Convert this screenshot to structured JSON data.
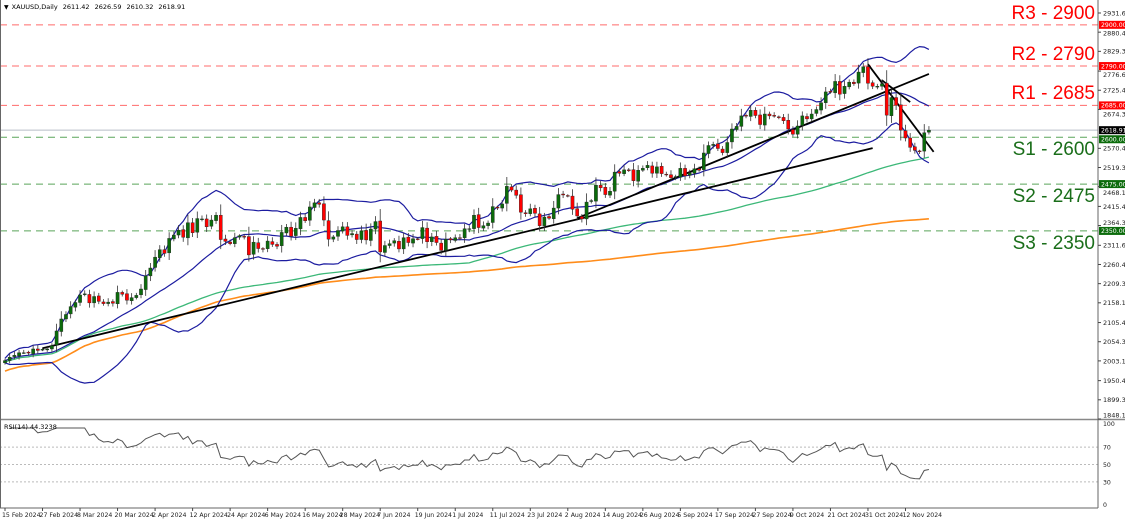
{
  "header": {
    "symbol": "XAUUSD,Daily",
    "open": "2611.42",
    "high": "2626.59",
    "low": "2610.32",
    "close": "2618.91"
  },
  "rsi_label": "RSI(14) 44.3238",
  "levels": [
    {
      "name": "R3",
      "label": "R3 - 2900",
      "value": 2900,
      "tag": "2900.00",
      "color": "#ff0000",
      "line_color": "#ff6b6b"
    },
    {
      "name": "R2",
      "label": "R2 - 2790",
      "value": 2790,
      "tag": "2790.00",
      "color": "#ff0000",
      "line_color": "#ff6b6b"
    },
    {
      "name": "R1",
      "label": "R1 - 2685",
      "value": 2685,
      "tag": "2685.00",
      "color": "#ff0000",
      "line_color": "#ff6b6b"
    },
    {
      "name": "S1",
      "label": "S1 - 2600",
      "value": 2600,
      "tag": "2600.00",
      "color": "#1a6e1a",
      "line_color": "#5aa55a"
    },
    {
      "name": "S2",
      "label": "S2 - 2475",
      "value": 2475,
      "tag": "2475.00",
      "color": "#1a6e1a",
      "line_color": "#5aa55a"
    },
    {
      "name": "S3",
      "label": "S3 - 2350",
      "value": 2350,
      "tag": "2350.00",
      "color": "#1a6e1a",
      "line_color": "#5aa55a"
    }
  ],
  "current_price": {
    "value": 2618.91,
    "tag": "2618.91"
  },
  "chart_data": {
    "type": "candlestick",
    "title": "XAUUSD,Daily",
    "start_date": "2024-02-15",
    "excluded_dates": [
      "2024-03-29"
    ],
    "closes": [
      2004,
      2013,
      2018,
      2025,
      2025,
      2024,
      2035,
      2031,
      2034,
      2035,
      2044,
      2083,
      2115,
      2127,
      2148,
      2159,
      2179,
      2182,
      2158,
      2175,
      2162,
      2156,
      2160,
      2157,
      2186,
      2181,
      2165,
      2172,
      2178,
      2195,
      2230,
      2251,
      2280,
      2300,
      2290,
      2330,
      2339,
      2352,
      2333,
      2372,
      2345,
      2383,
      2382,
      2361,
      2379,
      2392,
      2327,
      2322,
      2316,
      2332,
      2337,
      2335,
      2286,
      2320,
      2303,
      2301,
      2323,
      2314,
      2309,
      2346,
      2360,
      2336,
      2357,
      2386,
      2377,
      2414,
      2425,
      2421,
      2379,
      2328,
      2334,
      2351,
      2361,
      2338,
      2343,
      2327,
      2350,
      2326,
      2355,
      2375,
      2294,
      2311,
      2316,
      2324,
      2302,
      2332,
      2319,
      2329,
      2328,
      2359,
      2321,
      2334,
      2319,
      2298,
      2328,
      2326,
      2332,
      2330,
      2356,
      2356,
      2392,
      2359,
      2364,
      2371,
      2415,
      2411,
      2422,
      2469,
      2459,
      2445,
      2400,
      2396,
      2409,
      2397,
      2364,
      2387,
      2384,
      2411,
      2447,
      2446,
      2443,
      2408,
      2390,
      2382,
      2427,
      2431,
      2472,
      2465,
      2447,
      2456,
      2507,
      2504,
      2513,
      2512,
      2484,
      2512,
      2517,
      2525,
      2504,
      2521,
      2503,
      2500,
      2492,
      2495,
      2517,
      2497,
      2505,
      2516,
      2512,
      2558,
      2578,
      2581,
      2570,
      2559,
      2586,
      2622,
      2629,
      2657,
      2657,
      2672,
      2658,
      2634,
      2662,
      2657,
      2656,
      2653,
      2644,
      2622,
      2608,
      2630,
      2657,
      2649,
      2662,
      2674,
      2692,
      2721,
      2720,
      2749,
      2715,
      2736,
      2747,
      2743,
      2774,
      2788,
      2744,
      2736,
      2736,
      2743,
      2659,
      2706,
      2685,
      2619,
      2598,
      2573,
      2565,
      2563,
      2612,
      2618.91
    ],
    "y_axis_ticks": [
      "2931.60",
      "2880.45",
      "2829.30",
      "2776.60",
      "2725.45",
      "2674.30",
      "2570.45",
      "2519.30",
      "2468.15",
      "2415.45",
      "2364.30",
      "2311.60",
      "2260.45",
      "2209.30",
      "2158.15",
      "2105.45",
      "2054.30",
      "2003.15",
      "1950.45",
      "1899.30",
      "1848.15"
    ],
    "ylim": [
      1848.15,
      2931.6
    ],
    "x_axis_labels": [
      "15 Feb 2024",
      "27 Feb 2024",
      "8 Mar 2024",
      "20 Mar 2024",
      "2 Apr 2024",
      "12 Apr 2024",
      "24 Apr 2024",
      "6 May 2024",
      "16 May 2024",
      "28 May 2024",
      "7 Jun 2024",
      "19 Jun 2024",
      "1 Jul 2024",
      "11 Jul 2024",
      "23 Jul 2024",
      "2 Aug 2024",
      "14 Aug 2024",
      "26 Aug 2024",
      "5 Sep 2024",
      "17 Sep 2024",
      "27 Sep 2024",
      "9 Oct 2024",
      "21 Oct 2024",
      "31 Oct 2024",
      "12 Nov 2024"
    ],
    "indicators": {
      "bollinger": {
        "color": "#1c1ca0"
      },
      "ma_fast": {
        "color": "#3cb878"
      },
      "ma_slow": {
        "color": "#ff8c1a"
      }
    },
    "trendlines": [
      {
        "from": [
          "2024-02-27",
          2037
        ],
        "to": [
          "2024-11-01",
          2571
        ]
      },
      {
        "from": [
          "2024-08-06",
          2384
        ],
        "to": [
          "2024-11-19",
          2769
        ]
      },
      {
        "from": [
          "2024-10-31",
          2795
        ],
        "to": [
          "2024-11-20",
          2561
        ]
      },
      {
        "from": [
          "2024-11-05",
          2752
        ],
        "to": [
          "2024-11-13",
          2694
        ]
      }
    ],
    "rsi": {
      "period": 14,
      "levels": [
        "100",
        "70",
        "50",
        "30",
        "0"
      ],
      "value": 44.3238
    },
    "colors": {
      "up": "#0b6b0b",
      "down": "#ff0000"
    }
  }
}
